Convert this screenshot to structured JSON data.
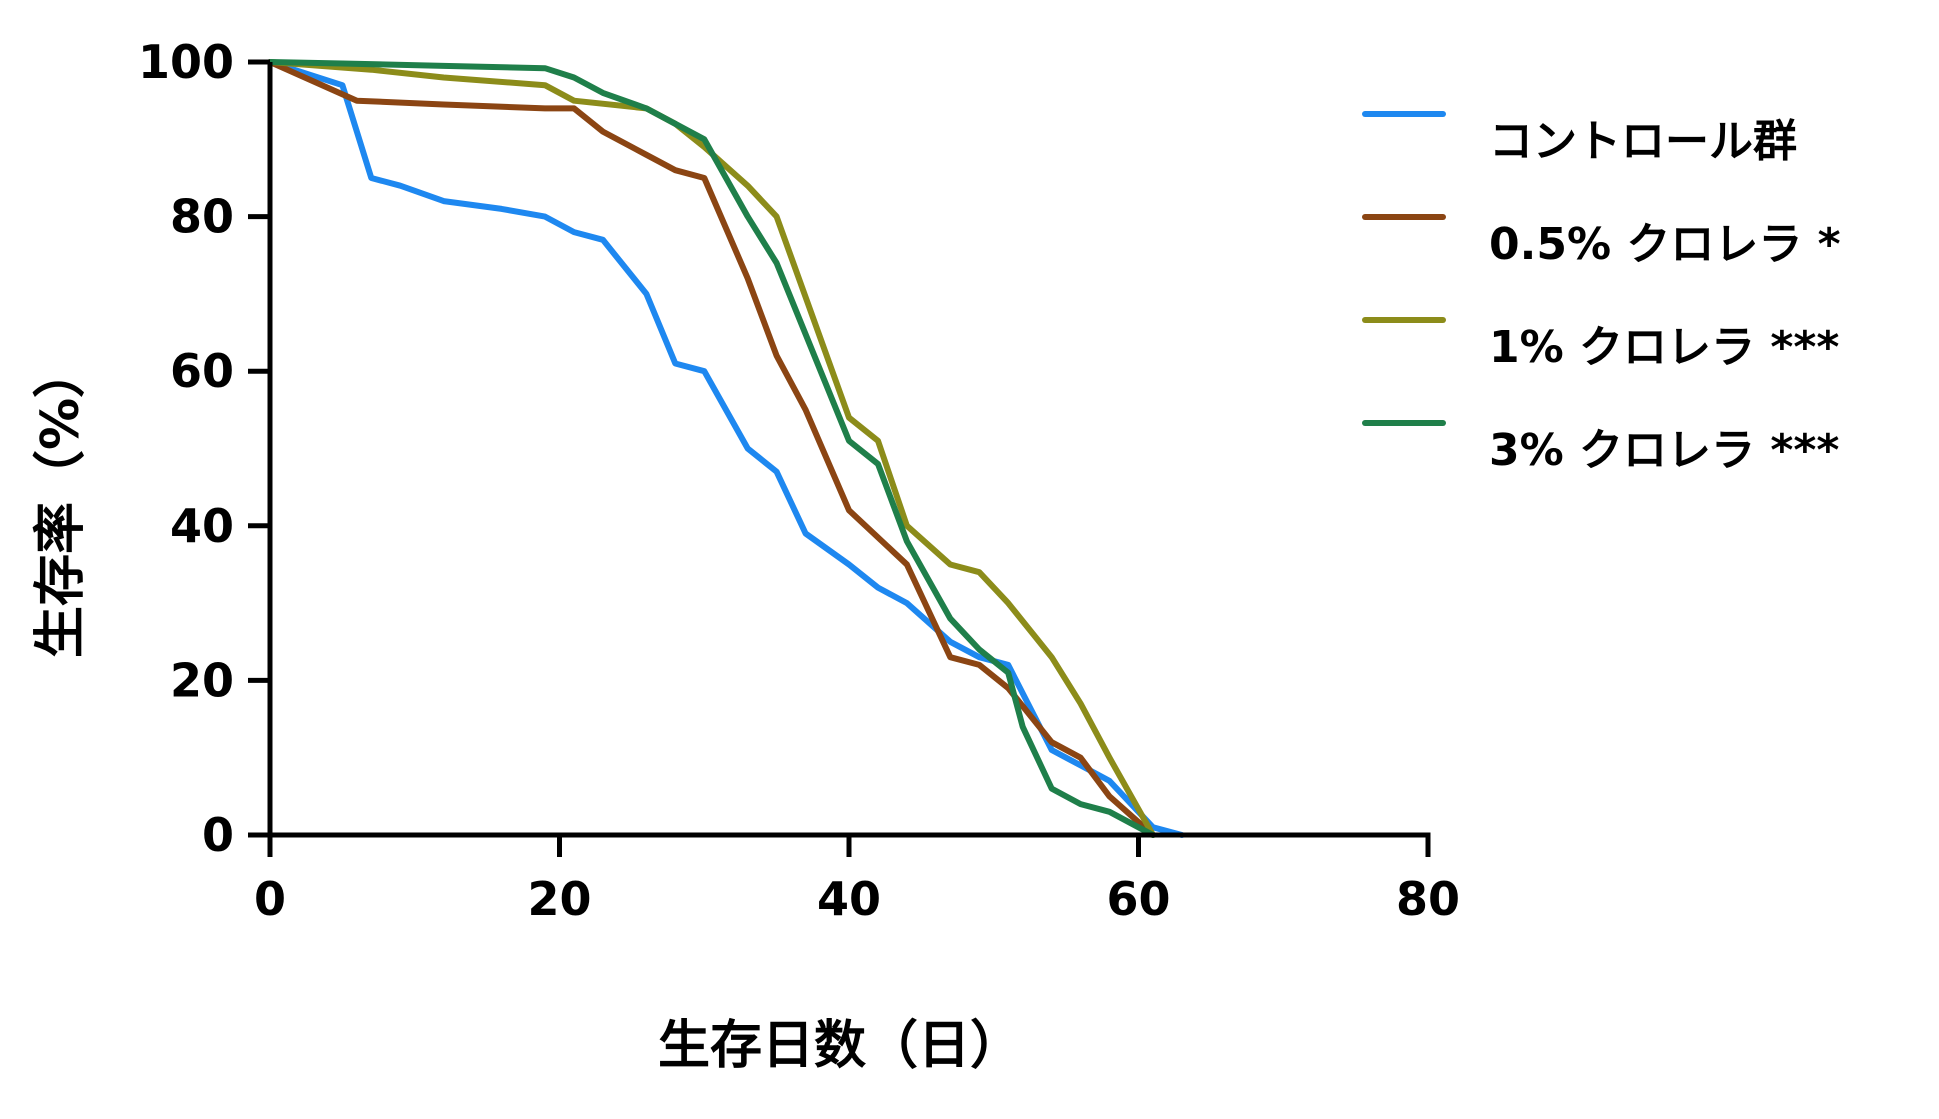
{
  "chart_data": {
    "type": "line",
    "xlabel": "生存日数（日）",
    "ylabel": "生存率（%）",
    "xlim": [
      0,
      80
    ],
    "ylim": [
      0,
      100
    ],
    "xticks": [
      "0",
      "20",
      "40",
      "60",
      "80"
    ],
    "yticks": [
      "0",
      "20",
      "40",
      "60",
      "80",
      "100"
    ],
    "grid": false,
    "legend_position": "right",
    "series": [
      {
        "name": "コントロール群",
        "color": "#1e88f0",
        "x": [
          0,
          5,
          7,
          9,
          12,
          16,
          19,
          21,
          23,
          26,
          28,
          30,
          33,
          35,
          37,
          40,
          42,
          44,
          47,
          49,
          51,
          54,
          56,
          58,
          61,
          63
        ],
        "y": [
          100,
          97,
          85,
          84,
          82,
          81,
          80,
          78,
          77,
          70,
          61,
          60,
          50,
          47,
          39,
          35,
          32,
          30,
          25,
          23,
          22,
          11,
          9,
          7,
          1,
          0
        ]
      },
      {
        "name": "0.5% クロレラ *",
        "color": "#8b4513",
        "x": [
          0,
          6,
          12,
          19,
          21,
          23,
          26,
          28,
          30,
          33,
          35,
          37,
          40,
          44,
          47,
          49,
          51,
          54,
          56,
          58,
          61
        ],
        "y": [
          100,
          95,
          94.5,
          94,
          94,
          91,
          88,
          86,
          85,
          72,
          62,
          55,
          42,
          35,
          23,
          22,
          19,
          12,
          10,
          5,
          0
        ]
      },
      {
        "name": "1% クロレラ ***",
        "color": "#8c8c1a",
        "x": [
          0,
          7,
          12,
          19,
          21,
          26,
          28,
          30,
          33,
          35,
          40,
          42,
          44,
          47,
          49,
          51,
          54,
          56,
          58,
          61
        ],
        "y": [
          100,
          99,
          98,
          97,
          95,
          94,
          92,
          89,
          84,
          80,
          54,
          51,
          40,
          35,
          34,
          30,
          23,
          17,
          10,
          0
        ]
      },
      {
        "name": "3% クロレラ ***",
        "color": "#1f7f4a",
        "x": [
          0,
          5,
          12,
          19,
          21,
          23,
          26,
          28,
          30,
          33,
          35,
          40,
          42,
          44,
          47,
          49,
          51,
          52,
          54,
          56,
          58,
          60,
          61
        ],
        "y": [
          100,
          99.8,
          99.5,
          99.2,
          98,
          96,
          94,
          92,
          90,
          80,
          74,
          51,
          48,
          38,
          28,
          24,
          21,
          14,
          6,
          4,
          3,
          1,
          0
        ]
      }
    ]
  }
}
